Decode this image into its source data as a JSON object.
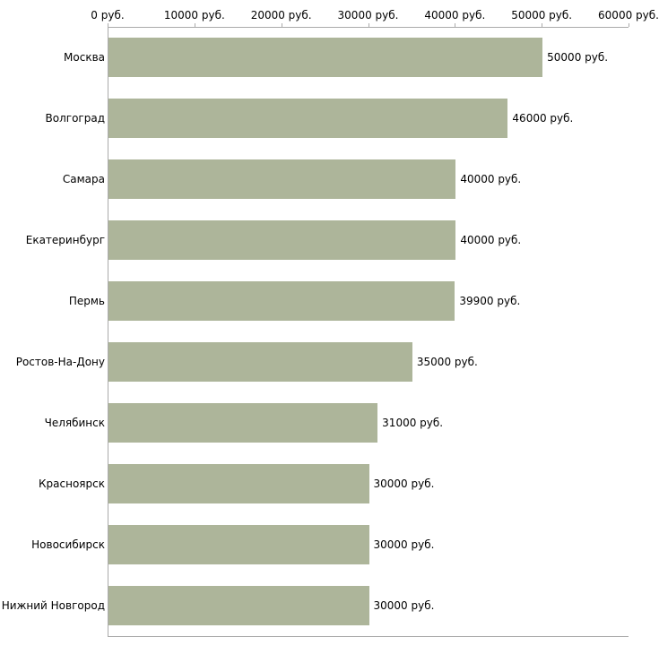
{
  "chart_data": {
    "type": "bar",
    "orientation": "horizontal",
    "title": "",
    "xlabel": "",
    "ylabel": "",
    "categories": [
      "Москва",
      "Волгоград",
      "Самара",
      "Екатеринбург",
      "Пермь",
      "Ростов-На-Дону",
      "Челябинск",
      "Красноярск",
      "Новосибирск",
      "Нижний Новгород"
    ],
    "values": [
      50000,
      46000,
      40000,
      40000,
      39900,
      35000,
      31000,
      30000,
      30000,
      30000
    ],
    "value_labels": [
      "50000 руб.",
      "46000 руб.",
      "40000 руб.",
      "40000 руб.",
      "39900 руб.",
      "35000 руб.",
      "31000 руб.",
      "30000 руб.",
      "30000 руб.",
      "30000 руб."
    ],
    "x_ticks": [
      0,
      10000,
      20000,
      30000,
      40000,
      50000,
      60000
    ],
    "x_tick_labels": [
      "0 руб.",
      "10000 руб.",
      "20000 руб.",
      "30000 руб.",
      "40000 руб.",
      "50000 руб.",
      "60000 руб."
    ],
    "xlim": [
      0,
      60000
    ],
    "grid": false,
    "legend": false,
    "colors": {
      "bar": "#adb59a",
      "axis": "#aaaaaa",
      "text": "#000000",
      "background": "#ffffff"
    }
  }
}
